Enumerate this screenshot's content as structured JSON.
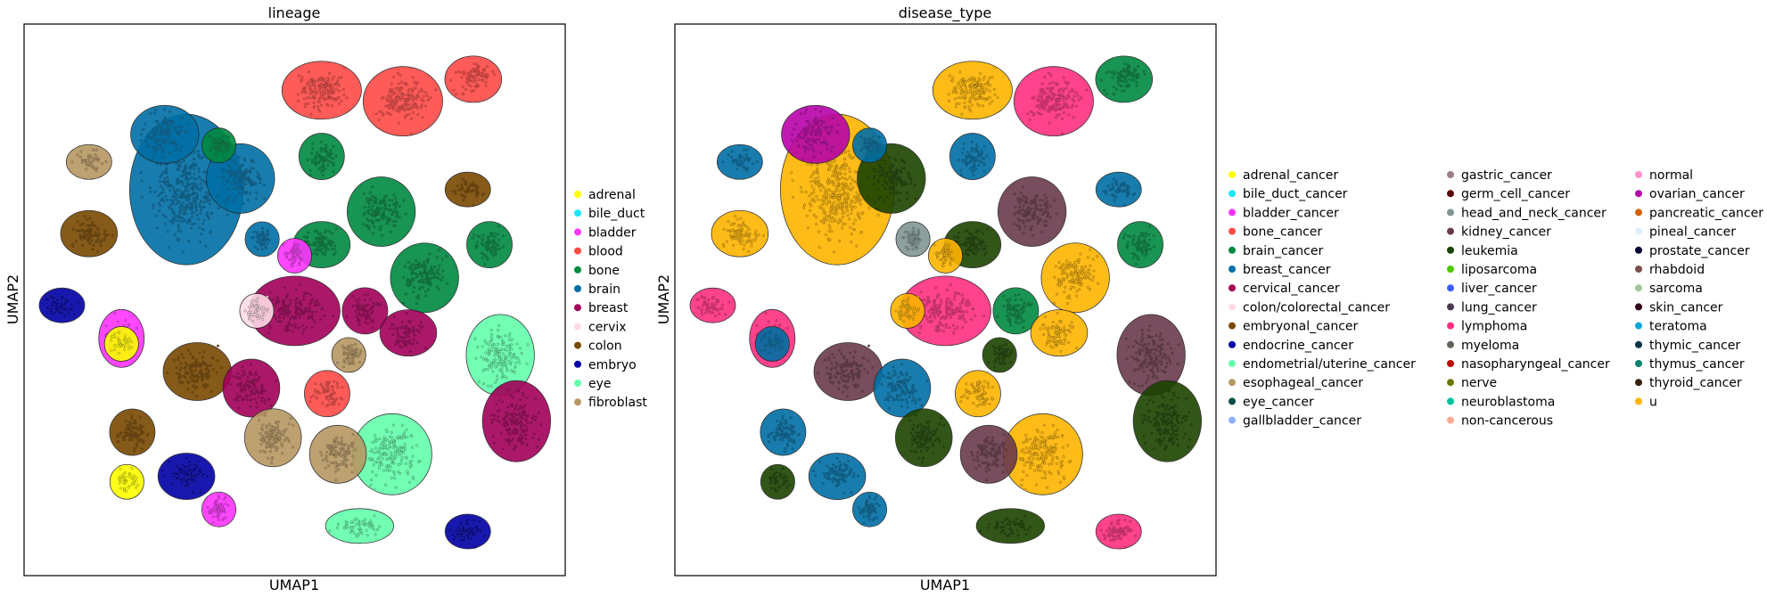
{
  "chart_data": [
    {
      "type": "scatter",
      "title": "lineage",
      "xlabel": "UMAP1",
      "ylabel": "UMAP2",
      "grid": false,
      "legend_position": "right",
      "legend": [
        {
          "label": "adrenal",
          "color": "#ffff00"
        },
        {
          "label": "bile_duct",
          "color": "#1ce6ff"
        },
        {
          "label": "bladder",
          "color": "#ff34ff"
        },
        {
          "label": "blood",
          "color": "#ff4a46"
        },
        {
          "label": "bone",
          "color": "#008941"
        },
        {
          "label": "brain",
          "color": "#006fa6"
        },
        {
          "label": "breast",
          "color": "#a30059"
        },
        {
          "label": "cervix",
          "color": "#ffdbe5"
        },
        {
          "label": "colon",
          "color": "#7a4900"
        },
        {
          "label": "embryo",
          "color": "#0000a6"
        },
        {
          "label": "eye",
          "color": "#63ffac"
        },
        {
          "label": "fibroblast",
          "color": "#b79762"
        }
      ]
    },
    {
      "type": "scatter",
      "title": "disease_type",
      "xlabel": "UMAP1",
      "ylabel": "UMAP2",
      "grid": false,
      "legend_position": "right",
      "legend_columns": [
        [
          {
            "label": "adrenal_cancer",
            "color": "#ffff00"
          },
          {
            "label": "bile_duct_cancer",
            "color": "#1ce6ff"
          },
          {
            "label": "bladder_cancer",
            "color": "#ff34ff"
          },
          {
            "label": "bone_cancer",
            "color": "#ff4a46"
          },
          {
            "label": "brain_cancer",
            "color": "#008941"
          },
          {
            "label": "breast_cancer",
            "color": "#006fa6"
          },
          {
            "label": "cervical_cancer",
            "color": "#a30059"
          },
          {
            "label": "colon/colorectal_cancer",
            "color": "#ffdbe5"
          },
          {
            "label": "embryonal_cancer",
            "color": "#7a4900"
          },
          {
            "label": "endocrine_cancer",
            "color": "#0000a6"
          },
          {
            "label": "endometrial/uterine_cancer",
            "color": "#63ffac"
          },
          {
            "label": "esophageal_cancer",
            "color": "#b79762"
          },
          {
            "label": "eye_cancer",
            "color": "#004d43"
          },
          {
            "label": "gallbladder_cancer",
            "color": "#8fb0ff"
          }
        ],
        [
          {
            "label": "gastric_cancer",
            "color": "#997d87"
          },
          {
            "label": "germ_cell_cancer",
            "color": "#5a0007"
          },
          {
            "label": "head_and_neck_cancer",
            "color": "#809693"
          },
          {
            "label": "kidney_cancer",
            "color": "#6a3a4c"
          },
          {
            "label": "leukemia",
            "color": "#1b4400"
          },
          {
            "label": "liposarcoma",
            "color": "#4fc601"
          },
          {
            "label": "liver_cancer",
            "color": "#3b5dff"
          },
          {
            "label": "lung_cancer",
            "color": "#4a3b53"
          },
          {
            "label": "lymphoma",
            "color": "#ff2f80"
          },
          {
            "label": "myeloma",
            "color": "#61615a"
          },
          {
            "label": "nasopharyngeal_cancer",
            "color": "#ba0900"
          },
          {
            "label": "nerve",
            "color": "#6b7900"
          },
          {
            "label": "neuroblastoma",
            "color": "#00c2a0"
          },
          {
            "label": "non-cancerous",
            "color": "#ffaa92"
          }
        ],
        [
          {
            "label": "normal",
            "color": "#ff90c9"
          },
          {
            "label": "ovarian_cancer",
            "color": "#b903aa"
          },
          {
            "label": "pancreatic_cancer",
            "color": "#d16100"
          },
          {
            "label": "pineal_cancer",
            "color": "#ddefff"
          },
          {
            "label": "prostate_cancer",
            "color": "#000035"
          },
          {
            "label": "rhabdoid",
            "color": "#7b4f4b"
          },
          {
            "label": "sarcoma",
            "color": "#a1c299"
          },
          {
            "label": "skin_cancer",
            "color": "#300018"
          },
          {
            "label": "teratoma",
            "color": "#0aa6d8"
          },
          {
            "label": "thymic_cancer",
            "color": "#013349"
          },
          {
            "label": "thymus_cancer",
            "color": "#00846f"
          },
          {
            "label": "thyroid_cancer",
            "color": "#372101"
          },
          {
            "label": "u",
            "color": "#ffb500"
          }
        ]
      ]
    }
  ]
}
